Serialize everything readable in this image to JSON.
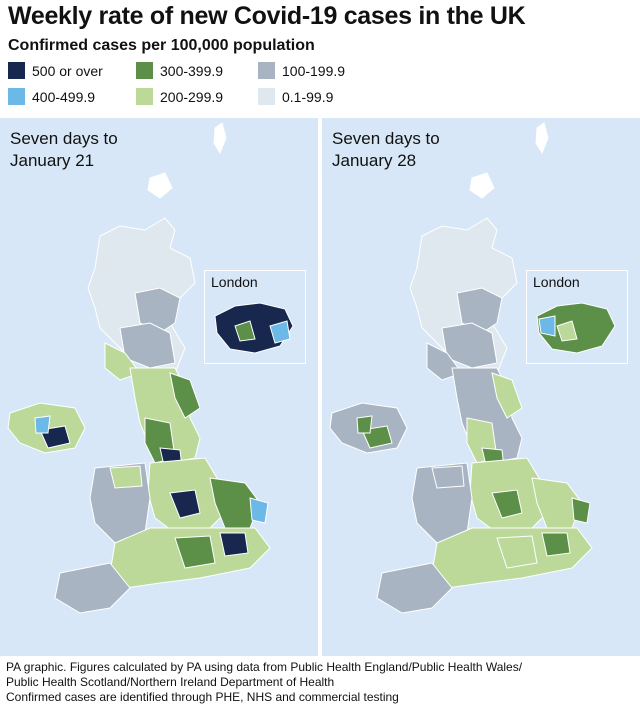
{
  "title": "Weekly rate of new Covid-19 cases in the UK",
  "subtitle": "Confirmed cases per 100,000 population",
  "legend": [
    {
      "label": "500 or over",
      "color": "#17274d"
    },
    {
      "label": "400-499.9",
      "color": "#6cb8e6"
    },
    {
      "label": "300-399.9",
      "color": "#5c8f47"
    },
    {
      "label": "200-299.9",
      "color": "#bcd99a"
    },
    {
      "label": "100-199.9",
      "color": "#a9b4c2"
    },
    {
      "label": "0.1-99.9",
      "color": "#dfe8ee"
    }
  ],
  "maps": [
    {
      "title": "Seven days to\nJanuary 21",
      "inset_label": "London"
    },
    {
      "title": "Seven days to\nJanuary 28",
      "inset_label": "London"
    }
  ],
  "footer": [
    "PA graphic. Figures calculated by PA using data from Public Health England/Public Health Wales/",
    "Public Health Scotland/Northern Ireland Department of Health",
    "Confirmed cases are identified through PHE, NHS and commercial testing"
  ]
}
